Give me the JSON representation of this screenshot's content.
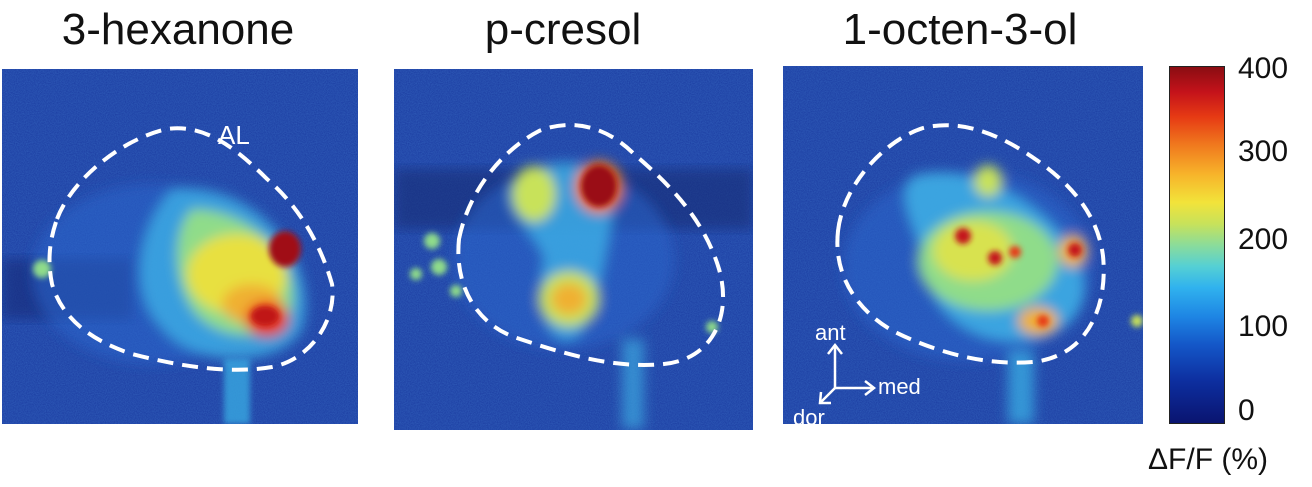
{
  "panels": [
    {
      "title": "3-hexanone"
    },
    {
      "title": "p-cresol"
    },
    {
      "title": "1-octen-3-ol"
    }
  ],
  "region_label": "AL",
  "orientation": {
    "ant": "ant",
    "med": "med",
    "dor": "dor"
  },
  "colorbar": {
    "ticks": [
      "400",
      "300",
      "200",
      "100",
      "0"
    ],
    "label": "ΔF/F (%)",
    "colors": [
      "#0a1470",
      "#1e86e4",
      "#8bdc9a",
      "#f2e33a",
      "#f07a1e",
      "#8a0d12"
    ]
  }
}
